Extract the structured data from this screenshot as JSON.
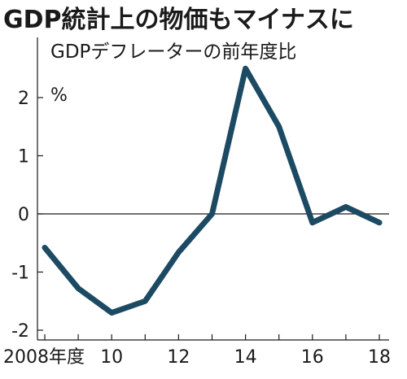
{
  "chart_data": {
    "type": "line",
    "title": "GDP統計上の物価もマイナスに",
    "subtitle": "GDPデフレーターの前年度比",
    "ylabel": "%",
    "x": [
      2008,
      2009,
      2010,
      2011,
      2012,
      2013,
      2014,
      2015,
      2016,
      2017,
      2018
    ],
    "series": [
      {
        "values": [
          -0.58,
          -1.28,
          -1.7,
          -1.5,
          -0.66,
          0.0,
          2.5,
          1.5,
          -0.15,
          0.12,
          -0.15
        ]
      }
    ],
    "xlim": [
      2008,
      2018
    ],
    "ylim": [
      -2,
      2.5
    ],
    "x_ticks": [
      {
        "value": 2008,
        "label": "2008年度"
      },
      {
        "value": 2010,
        "label": "10"
      },
      {
        "value": 2012,
        "label": "12"
      },
      {
        "value": 2014,
        "label": "14"
      },
      {
        "value": 2016,
        "label": "16"
      },
      {
        "value": 2018,
        "label": "18"
      }
    ],
    "y_ticks": [
      {
        "value": 2,
        "label": "2"
      },
      {
        "value": 1,
        "label": "1"
      },
      {
        "value": 0,
        "label": "0"
      },
      {
        "value": -1,
        "label": "-1"
      },
      {
        "value": -2,
        "label": "-2"
      }
    ],
    "line_color": "#1d4a63",
    "grid": false
  }
}
